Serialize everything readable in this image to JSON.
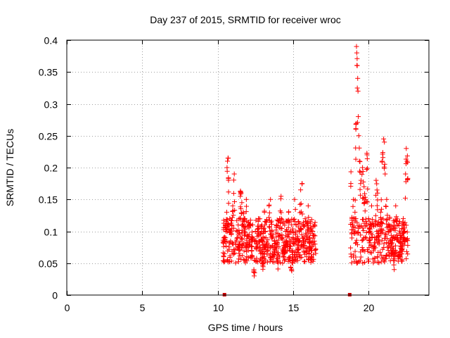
{
  "chart_data": {
    "type": "scatter",
    "title": "Day 237 of 2015, SRMTID for receiver wroc",
    "xlabel": "GPS time / hours",
    "ylabel": "SRMTID / TECUs",
    "xlim": [
      0,
      24
    ],
    "ylim": [
      0,
      0.4
    ],
    "grid": true,
    "marker": "+",
    "colors": {
      "points": "#ff0000",
      "zero_marks": "#cc0000"
    },
    "x_ticks": [
      0,
      5,
      10,
      15,
      20
    ],
    "x_tick_labels": [
      "0",
      "5",
      "10",
      "15",
      "20"
    ],
    "y_ticks": [
      0,
      0.05,
      0.1,
      0.15,
      0.2,
      0.25,
      0.3,
      0.35,
      0.4
    ],
    "y_tick_labels": [
      "0",
      "0.05",
      "0.1",
      "0.15",
      "0.2",
      "0.25",
      "0.3",
      "0.35",
      "0.4"
    ],
    "zero_markers_x": [
      10.45,
      18.75
    ],
    "series": [
      {
        "name": "wroc",
        "segments": [
          {
            "x_start": 10.35,
            "x_end": 16.5,
            "points": [
              [
                10.4,
                0.06
              ],
              [
                10.45,
                0.09
              ],
              [
                10.5,
                0.11
              ],
              [
                10.55,
                0.1
              ],
              [
                10.6,
                0.13
              ],
              [
                10.62,
                0.2
              ],
              [
                10.65,
                0.21
              ],
              [
                10.7,
                0.215
              ],
              [
                10.72,
                0.18
              ],
              [
                10.8,
                0.12
              ],
              [
                10.9,
                0.095
              ],
              [
                11.0,
                0.14
              ],
              [
                11.1,
                0.19
              ],
              [
                11.2,
                0.08
              ],
              [
                11.3,
                0.1
              ],
              [
                11.4,
                0.07
              ],
              [
                11.5,
                0.155
              ],
              [
                11.55,
                0.16
              ],
              [
                11.6,
                0.145
              ],
              [
                11.7,
                0.13
              ],
              [
                11.8,
                0.12
              ],
              [
                11.9,
                0.15
              ],
              [
                12.0,
                0.08
              ],
              [
                12.1,
                0.11
              ],
              [
                12.2,
                0.06
              ],
              [
                12.3,
                0.09
              ],
              [
                12.4,
                0.04
              ],
              [
                12.45,
                0.035
              ],
              [
                12.5,
                0.1
              ],
              [
                12.6,
                0.08
              ],
              [
                12.7,
                0.12
              ],
              [
                12.8,
                0.07
              ],
              [
                12.9,
                0.1
              ],
              [
                13.0,
                0.05
              ],
              [
                13.1,
                0.13
              ],
              [
                13.2,
                0.09
              ],
              [
                13.3,
                0.075
              ],
              [
                13.4,
                0.14
              ],
              [
                13.5,
                0.15
              ],
              [
                13.6,
                0.1
              ],
              [
                13.7,
                0.06
              ],
              [
                13.8,
                0.08
              ],
              [
                13.9,
                0.11
              ],
              [
                14.0,
                0.05
              ],
              [
                14.1,
                0.12
              ],
              [
                14.2,
                0.155
              ],
              [
                14.3,
                0.09
              ],
              [
                14.4,
                0.07
              ],
              [
                14.5,
                0.1
              ],
              [
                14.6,
                0.08
              ],
              [
                14.7,
                0.13
              ],
              [
                14.8,
                0.06
              ],
              [
                14.9,
                0.04
              ],
              [
                15.0,
                0.09
              ],
              [
                15.1,
                0.15
              ],
              [
                15.2,
                0.11
              ],
              [
                15.3,
                0.07
              ],
              [
                15.4,
                0.1
              ],
              [
                15.5,
                0.165
              ],
              [
                15.6,
                0.175
              ],
              [
                15.7,
                0.08
              ],
              [
                15.8,
                0.12
              ],
              [
                15.9,
                0.06
              ],
              [
                16.0,
                0.14
              ],
              [
                16.1,
                0.09
              ],
              [
                16.2,
                0.07
              ],
              [
                16.3,
                0.1
              ],
              [
                16.4,
                0.11
              ],
              [
                16.45,
                0.08
              ]
            ]
          },
          {
            "x_start": 18.8,
            "x_end": 22.6,
            "points": [
              [
                18.85,
                0.06
              ],
              [
                18.9,
                0.12
              ],
              [
                19.0,
                0.15
              ],
              [
                19.1,
                0.13
              ],
              [
                19.2,
                0.39
              ],
              [
                19.22,
                0.38
              ],
              [
                19.25,
                0.36
              ],
              [
                19.28,
                0.34
              ],
              [
                19.3,
                0.32
              ],
              [
                19.32,
                0.28
              ],
              [
                19.35,
                0.25
              ],
              [
                19.4,
                0.21
              ],
              [
                19.5,
                0.18
              ],
              [
                19.6,
                0.2
              ],
              [
                19.7,
                0.17
              ],
              [
                19.8,
                0.15
              ],
              [
                19.9,
                0.22
              ],
              [
                20.0,
                0.12
              ],
              [
                20.1,
                0.1
              ],
              [
                20.2,
                0.14
              ],
              [
                20.3,
                0.11
              ],
              [
                20.4,
                0.09
              ],
              [
                20.5,
                0.18
              ],
              [
                20.6,
                0.16
              ],
              [
                20.7,
                0.08
              ],
              [
                20.8,
                0.13
              ],
              [
                20.9,
                0.21
              ],
              [
                21.0,
                0.245
              ],
              [
                21.05,
                0.24
              ],
              [
                21.1,
                0.19
              ],
              [
                21.2,
                0.15
              ],
              [
                21.3,
                0.1
              ],
              [
                21.4,
                0.12
              ],
              [
                21.5,
                0.07
              ],
              [
                21.6,
                0.09
              ],
              [
                21.7,
                0.04
              ],
              [
                21.8,
                0.14
              ],
              [
                21.9,
                0.11
              ],
              [
                22.0,
                0.06
              ],
              [
                22.1,
                0.09
              ],
              [
                22.2,
                0.07
              ],
              [
                22.3,
                0.12
              ],
              [
                22.4,
                0.1
              ],
              [
                22.45,
                0.19
              ],
              [
                22.5,
                0.23
              ],
              [
                22.55,
                0.21
              ]
            ]
          }
        ]
      }
    ]
  }
}
